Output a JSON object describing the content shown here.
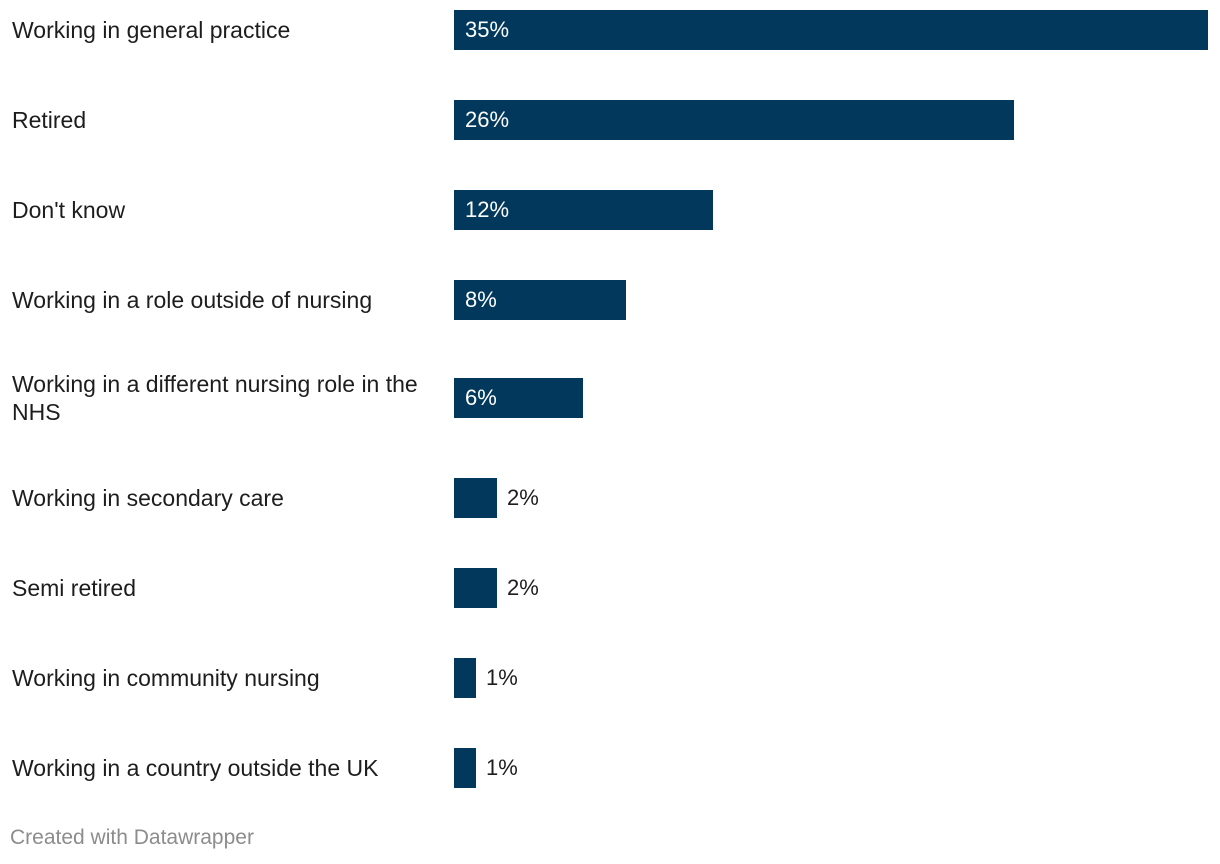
{
  "chart_data": {
    "type": "bar",
    "orientation": "horizontal",
    "categories": [
      "Working in general practice",
      "Retired",
      "Don't know",
      "Working in a role outside of nursing",
      "Working in a different nursing role in the NHS",
      "Working in secondary care",
      "Semi retired",
      "Working in community nursing",
      "Working in a country outside the UK"
    ],
    "values": [
      35,
      26,
      12,
      8,
      6,
      2,
      2,
      1,
      1
    ],
    "value_labels": [
      "35%",
      "26%",
      "12%",
      "8%",
      "6%",
      "2%",
      "2%",
      "1%",
      "1%"
    ],
    "unit": "%",
    "xlim": [
      0,
      35
    ],
    "bar_color": "#01385c",
    "grid": false
  },
  "footer": {
    "credit": "Created with Datawrapper"
  }
}
